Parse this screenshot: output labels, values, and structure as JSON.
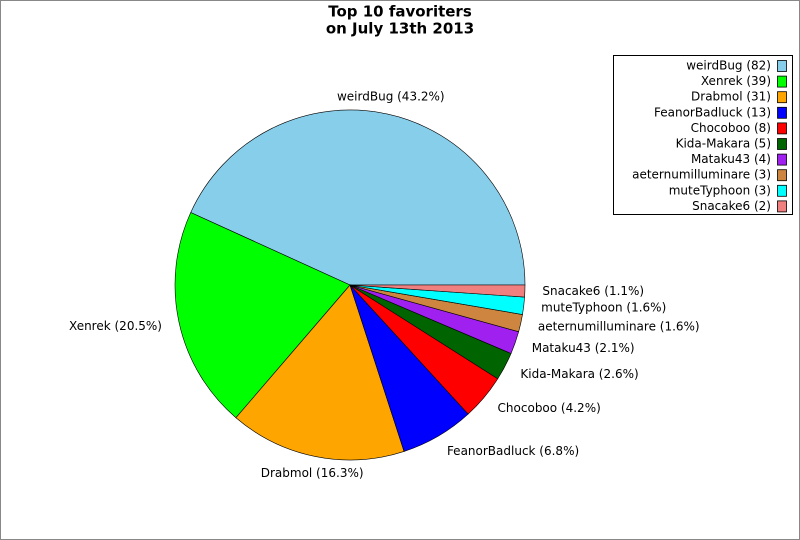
{
  "chart_data": {
    "type": "pie",
    "title": [
      "Top 10 favoriters",
      "on July 13th 2013"
    ],
    "values": [
      43.2,
      20.5,
      16.3,
      6.8,
      4.2,
      2.6,
      2.1,
      1.6,
      1.6,
      1.1
    ],
    "value_labels": [
      "weirdBug (43.2%)",
      "Xenrek (20.5%)",
      "Drabmol (16.3%)",
      "FeanorBadluck (6.8%)",
      "Chocoboo (4.2%)",
      "Kida-Makara (2.6%)",
      "Mataku43 (2.1%)",
      "aeternumilluminare (1.6%)",
      "muteTyphoon (1.6%)",
      "Snacake6 (1.1%)"
    ],
    "legend": [
      "weirdBug (82)",
      "Xenrek (39)",
      "Drabmol (31)",
      "FeanorBadluck (13)",
      "Chocoboo (8)",
      "Kida-Makara (5)",
      "Mataku43 (4)",
      "aeternumilluminare (3)",
      "muteTyphoon (3)",
      "Snacake6 (2)"
    ],
    "colors": [
      "#87ceeb",
      "#00ff00",
      "#ffa500",
      "#0000ff",
      "#ff0000",
      "#006400",
      "#a020f0",
      "#cd853f",
      "#00ffff",
      "#f08080"
    ],
    "legend_position": "upper right"
  }
}
